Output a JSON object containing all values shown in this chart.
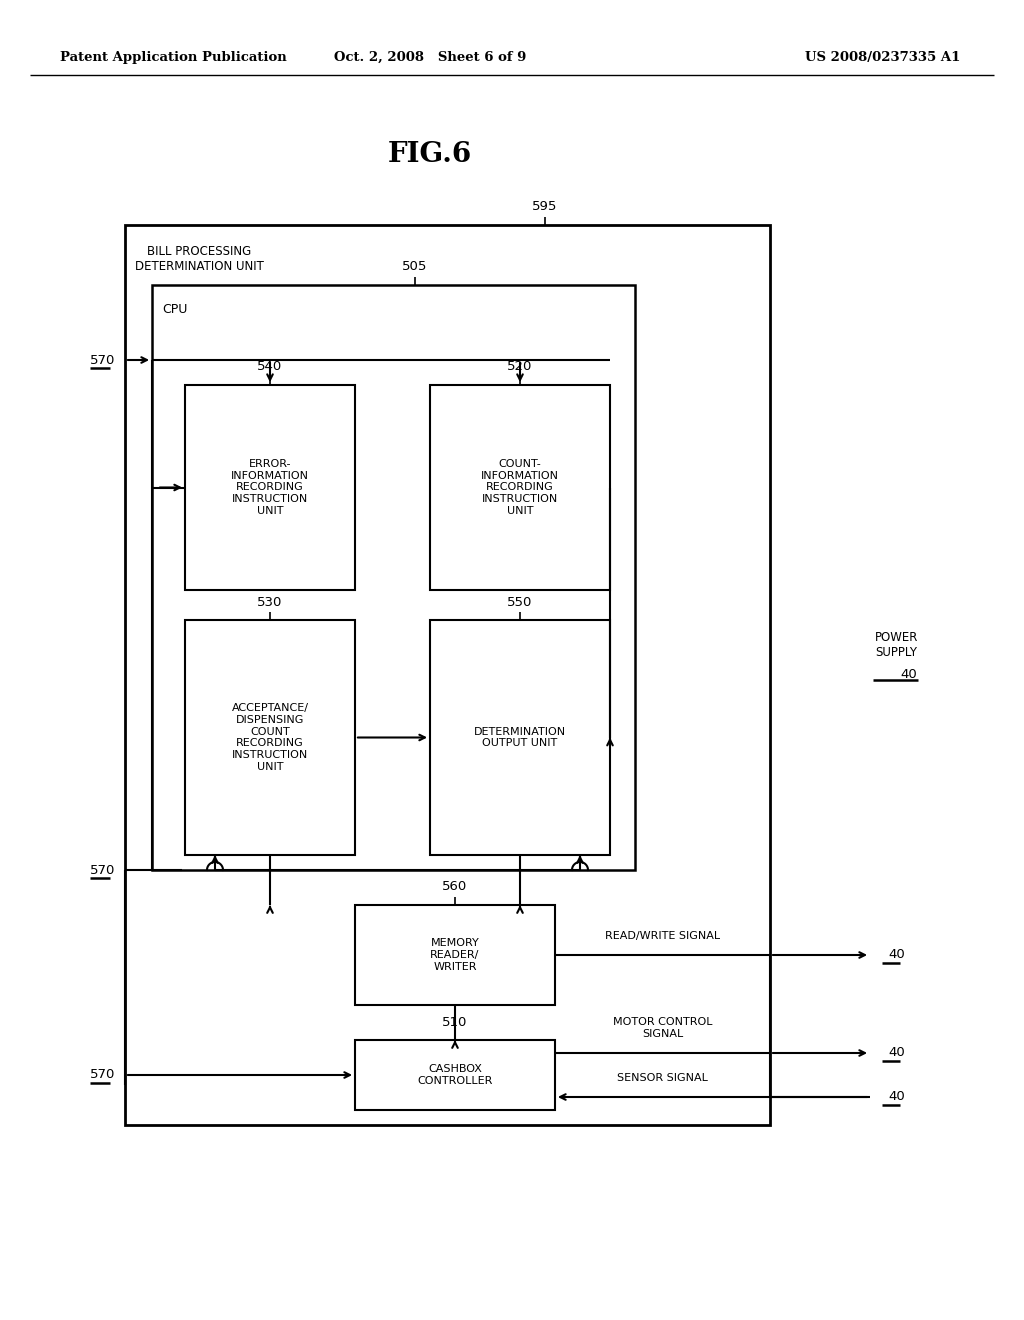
{
  "bg_color": "#ffffff",
  "header_left": "Patent Application Publication",
  "header_mid": "Oct. 2, 2008   Sheet 6 of 9",
  "header_right": "US 2008/0237335 A1",
  "figure_title": "FIG.6",
  "outer_box_label": "BILL PROCESSING\nDETERMINATION UNIT",
  "label_595": "595",
  "cpu_label": "CPU",
  "label_505": "505",
  "box_540_label": "ERROR-\nINFORMATION\nRECORDING\nINSTRUCTION\nUNIT",
  "label_540": "540",
  "box_520_label": "COUNT-\nINFORMATION\nRECORDING\nINSTRUCTION\nUNIT",
  "label_520": "520",
  "box_530_label": "ACCEPTANCE/\nDISPENSING\nCOUNT\nRECORDING\nINSTRUCTION\nUNIT",
  "label_530": "530",
  "box_550_label": "DETERMINATION\nOUTPUT UNIT",
  "label_550": "550",
  "box_560_label": "MEMORY\nREADER/\nWRITER",
  "label_560": "560",
  "box_510_label": "CASHBOX\nCONTROLLER",
  "label_510": "510",
  "label_570": "570",
  "label_40": "40",
  "power_supply_text": "POWER\nSUPPLY",
  "rw_signal_text": "READ/WRITE SIGNAL",
  "motor_signal_text": "MOTOR CONTROL\nSIGNAL",
  "sensor_signal_text": "SENSOR SIGNAL"
}
